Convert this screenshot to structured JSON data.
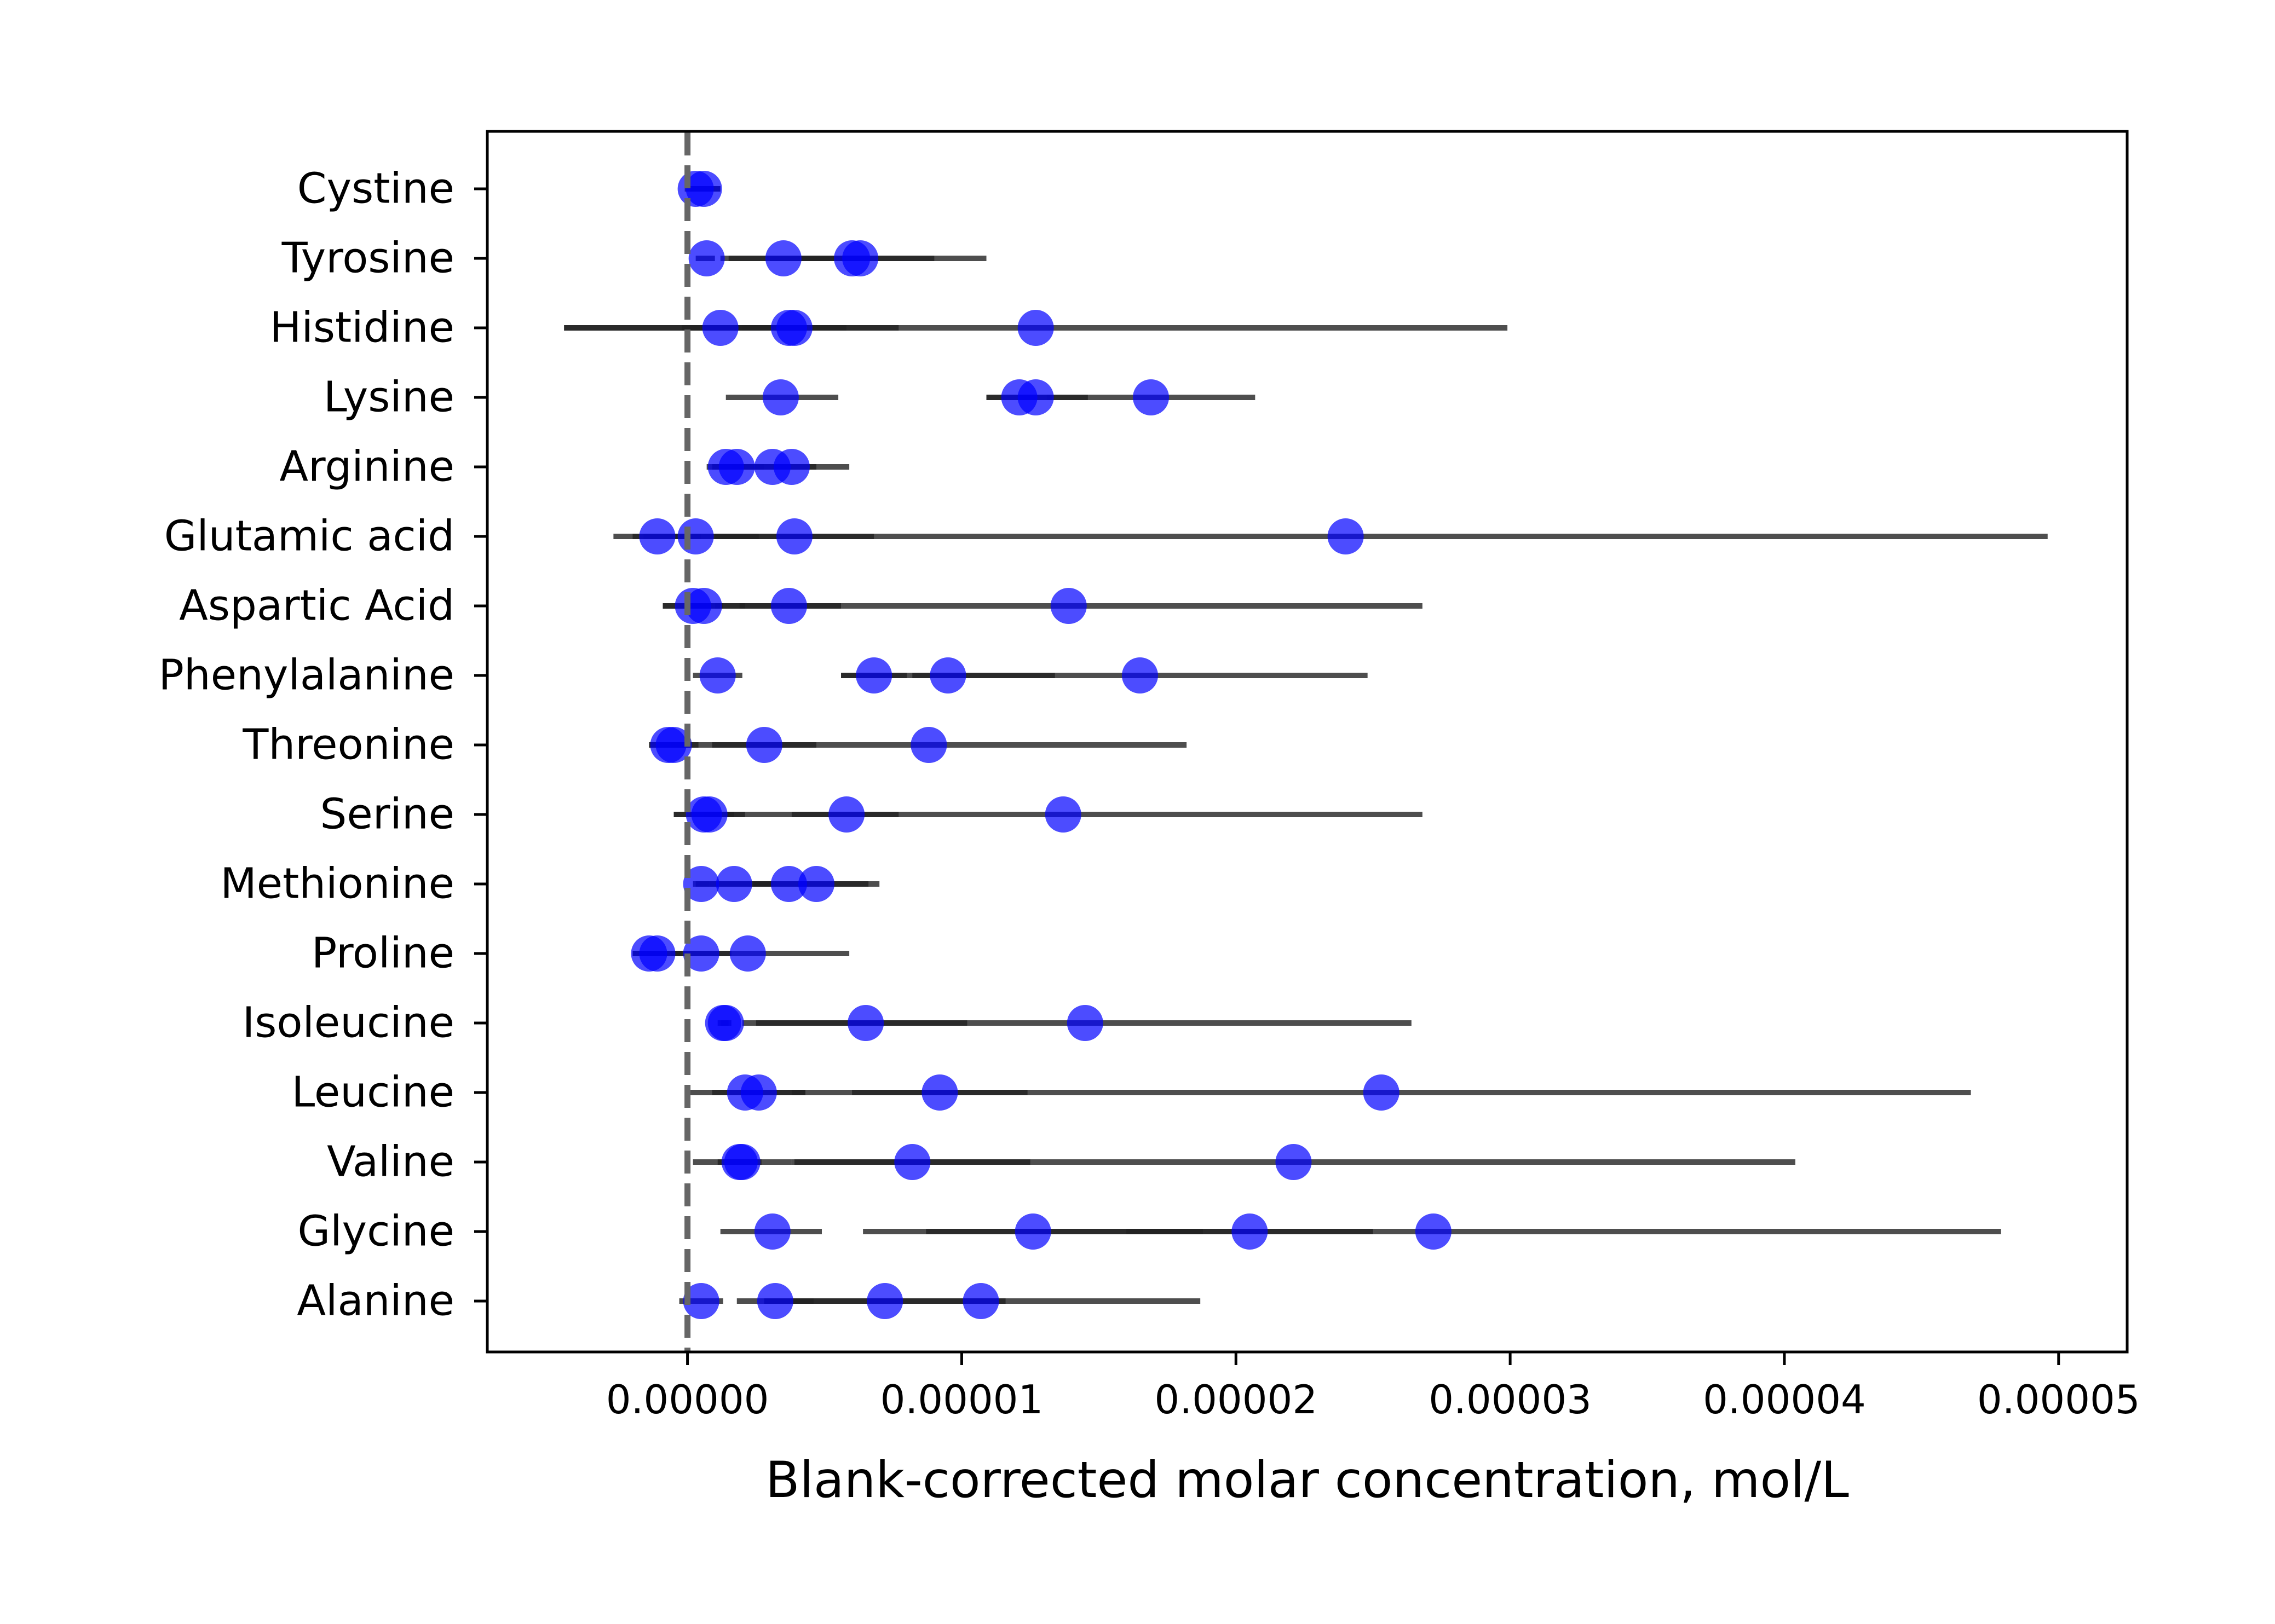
{
  "chart_data": {
    "type": "scatter",
    "title": "",
    "xlabel": "Blank-corrected molar concentration, mol/L",
    "ylabel": "",
    "xlim": [
      -7.3e-06,
      5.25e-05
    ],
    "x_ticks": [
      0,
      1e-05,
      2e-05,
      3e-05,
      4e-05,
      5e-05
    ],
    "x_tick_labels": [
      "0.00000",
      "0.00001",
      "0.00002",
      "0.00003",
      "0.00004",
      "0.00005"
    ],
    "grid": false,
    "legend": "none",
    "reference_line": {
      "x": 0,
      "style": "dashed",
      "color": "#666666"
    },
    "point_color": "#0000ff",
    "errorbar_color": "#222222",
    "categories": [
      "Cystine",
      "Tyrosine",
      "Histidine",
      "Lysine",
      "Arginine",
      "Glutamic acid",
      "Aspartic Acid",
      "Phenylalanine",
      "Threonine",
      "Serine",
      "Methionine",
      "Proline",
      "Isoleucine",
      "Leucine",
      "Valine",
      "Glycine",
      "Alanine"
    ],
    "rows": [
      {
        "category": "Cystine",
        "points": [
          {
            "x": 3e-07,
            "lo": -1e-07,
            "hi": 1.2e-06
          },
          {
            "x": 6e-07,
            "lo": 1e-07,
            "hi": 1.2e-06
          }
        ]
      },
      {
        "category": "Tyrosine",
        "points": [
          {
            "x": 7e-07,
            "lo": 3e-07,
            "hi": 1e-06
          },
          {
            "x": 3.5e-06,
            "lo": 1.2e-06,
            "hi": 5.8e-06
          },
          {
            "x": 6e-06,
            "lo": 3e-06,
            "hi": 9e-06
          },
          {
            "x": 6.3e-06,
            "lo": 1.5e-06,
            "hi": 1.09e-05
          }
        ]
      },
      {
        "category": "Histidine",
        "points": [
          {
            "x": 1.2e-06,
            "lo": -4.5e-06,
            "hi": 3e-06
          },
          {
            "x": 3.7e-06,
            "lo": -2e-07,
            "hi": 7.7e-06
          },
          {
            "x": 3.9e-06,
            "lo": 2e-06,
            "hi": 5.8e-06
          },
          {
            "x": 1.27e-05,
            "lo": -4.5e-06,
            "hi": 2.99e-05
          }
        ]
      },
      {
        "category": "Lysine",
        "points": [
          {
            "x": 3.4e-06,
            "lo": 1.4e-06,
            "hi": 5.5e-06
          },
          {
            "x": 1.21e-05,
            "lo": 1.09e-05,
            "hi": 1.33e-05
          },
          {
            "x": 1.27e-05,
            "lo": 1.09e-05,
            "hi": 1.46e-05
          },
          {
            "x": 1.69e-05,
            "lo": 1.31e-05,
            "hi": 2.07e-05
          }
        ]
      },
      {
        "category": "Arginine",
        "points": [
          {
            "x": 1.4e-06,
            "lo": 7e-07,
            "hi": 2.1e-06
          },
          {
            "x": 1.8e-06,
            "lo": 9e-07,
            "hi": 2.8e-06
          },
          {
            "x": 3.1e-06,
            "lo": 1.6e-06,
            "hi": 4.7e-06
          },
          {
            "x": 3.8e-06,
            "lo": 1.7e-06,
            "hi": 5.9e-06
          }
        ]
      },
      {
        "category": "Glutamic acid",
        "points": [
          {
            "x": -1.1e-06,
            "lo": -2.7e-06,
            "hi": 5e-07
          },
          {
            "x": 3e-07,
            "lo": -2e-06,
            "hi": 2.6e-06
          },
          {
            "x": 3.9e-06,
            "lo": 1e-06,
            "hi": 6.8e-06
          },
          {
            "x": 2.4e-05,
            "lo": -1.6e-06,
            "hi": 4.96e-05
          }
        ]
      },
      {
        "category": "Aspartic Acid",
        "points": [
          {
            "x": 2e-07,
            "lo": -9e-07,
            "hi": 1.3e-06
          },
          {
            "x": 6e-07,
            "lo": -9e-07,
            "hi": 2.1e-06
          },
          {
            "x": 3.7e-06,
            "lo": 1.9e-06,
            "hi": 5.6e-06
          },
          {
            "x": 1.39e-05,
            "lo": 1e-06,
            "hi": 2.68e-05
          }
        ]
      },
      {
        "category": "Phenylalanine",
        "points": [
          {
            "x": 1.1e-06,
            "lo": 2e-07,
            "hi": 2e-06
          },
          {
            "x": 6.8e-06,
            "lo": 5.6e-06,
            "hi": 8e-06
          },
          {
            "x": 9.5e-06,
            "lo": 5.6e-06,
            "hi": 1.34e-05
          },
          {
            "x": 1.65e-05,
            "lo": 8.2e-06,
            "hi": 2.48e-05
          }
        ]
      },
      {
        "category": "Threonine",
        "points": [
          {
            "x": -7e-07,
            "lo": -1.4e-06,
            "hi": 0.0
          },
          {
            "x": -5e-07,
            "lo": -1.4e-06,
            "hi": 4e-07
          },
          {
            "x": 2.8e-06,
            "lo": 9e-07,
            "hi": 4.7e-06
          },
          {
            "x": 8.8e-06,
            "lo": -6e-07,
            "hi": 1.82e-05
          }
        ]
      },
      {
        "category": "Serine",
        "points": [
          {
            "x": 6e-07,
            "lo": -5e-07,
            "hi": 1.7e-06
          },
          {
            "x": 8e-07,
            "lo": -5e-07,
            "hi": 2.1e-06
          },
          {
            "x": 5.8e-06,
            "lo": 3.8e-06,
            "hi": 7.7e-06
          },
          {
            "x": 1.37e-05,
            "lo": 6e-07,
            "hi": 2.68e-05
          }
        ]
      },
      {
        "category": "Methionine",
        "points": [
          {
            "x": 5e-07,
            "lo": 2e-07,
            "hi": 8e-07
          },
          {
            "x": 1.7e-06,
            "lo": 3e-07,
            "hi": 3.1e-06
          },
          {
            "x": 3.7e-06,
            "lo": 8e-07,
            "hi": 6.6e-06
          },
          {
            "x": 4.7e-06,
            "lo": 2.4e-06,
            "hi": 7e-06
          }
        ]
      },
      {
        "category": "Proline",
        "points": [
          {
            "x": -1.4e-06,
            "lo": -2e-06,
            "hi": -8e-07
          },
          {
            "x": -1.1e-06,
            "lo": -2e-06,
            "hi": -2e-07
          },
          {
            "x": 5e-07,
            "lo": -6e-07,
            "hi": 1.6e-06
          },
          {
            "x": 2.2e-06,
            "lo": -1.5e-06,
            "hi": 5.9e-06
          }
        ]
      },
      {
        "category": "Isoleucine",
        "points": [
          {
            "x": 1.3e-06,
            "lo": 1.1e-06,
            "hi": 1.5e-06
          },
          {
            "x": 1.4e-06,
            "lo": 1.2e-06,
            "hi": 1.6e-06
          },
          {
            "x": 6.5e-06,
            "lo": 2e-06,
            "hi": 1.02e-05
          },
          {
            "x": 1.45e-05,
            "lo": 2.5e-06,
            "hi": 2.64e-05
          }
        ]
      },
      {
        "category": "Leucine",
        "points": [
          {
            "x": 2.1e-06,
            "lo": 0.0,
            "hi": 4.3e-06
          },
          {
            "x": 2.6e-06,
            "lo": 9e-07,
            "hi": 4.3e-06
          },
          {
            "x": 9.2e-06,
            "lo": 6e-06,
            "hi": 1.24e-05
          },
          {
            "x": 2.53e-05,
            "lo": 3.8e-06,
            "hi": 4.68e-05
          }
        ]
      },
      {
        "category": "Valine",
        "points": [
          {
            "x": 1.9e-06,
            "lo": 1.1e-06,
            "hi": 2.7e-06
          },
          {
            "x": 2e-06,
            "lo": 2e-07,
            "hi": 3.8e-06
          },
          {
            "x": 8.2e-06,
            "lo": 3.9e-06,
            "hi": 1.25e-05
          },
          {
            "x": 2.21e-05,
            "lo": 3.8e-06,
            "hi": 4.04e-05
          }
        ]
      },
      {
        "category": "Glycine",
        "points": [
          {
            "x": 3.1e-06,
            "lo": 1.2e-06,
            "hi": 4.9e-06
          },
          {
            "x": 1.26e-05,
            "lo": 6.4e-06,
            "hi": 1.88e-05
          },
          {
            "x": 2.05e-05,
            "lo": 1.6e-05,
            "hi": 2.5e-05
          },
          {
            "x": 2.72e-05,
            "lo": 8.7e-06,
            "hi": 4.79e-05
          }
        ]
      },
      {
        "category": "Alanine",
        "points": [
          {
            "x": 5e-07,
            "lo": -3e-07,
            "hi": 1.3e-06
          },
          {
            "x": 3.2e-06,
            "lo": 1.8e-06,
            "hi": 4.6e-06
          },
          {
            "x": 7.2e-06,
            "lo": 2.8e-06,
            "hi": 1.16e-05
          },
          {
            "x": 1.07e-05,
            "lo": 2.8e-06,
            "hi": 1.87e-05
          }
        ]
      }
    ]
  }
}
